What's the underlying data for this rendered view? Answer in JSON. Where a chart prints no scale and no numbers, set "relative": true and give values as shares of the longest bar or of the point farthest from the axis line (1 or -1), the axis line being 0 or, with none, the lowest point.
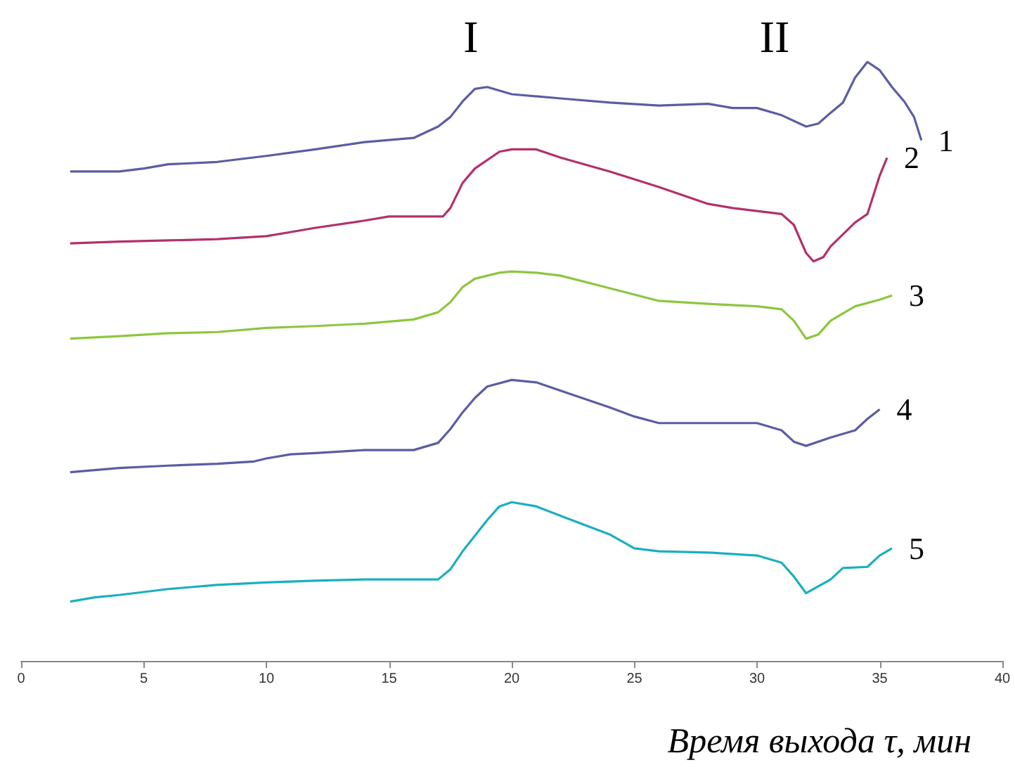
{
  "chart_data": {
    "type": "line",
    "relative": true,
    "xlabel": "Время выхода τ, мин",
    "xlim": [
      0,
      40
    ],
    "xticks": [
      0,
      5,
      10,
      15,
      20,
      25,
      30,
      35,
      40
    ],
    "tick_labels": "x",
    "grid": false,
    "legend": false,
    "marker": "none",
    "line_style": "solid",
    "annotations": [
      "I",
      "II"
    ],
    "series": [
      {
        "name": "1",
        "color": "#5c5ca3",
        "x": [
          2,
          4,
          5,
          6,
          8,
          10,
          12,
          14,
          16,
          17,
          17.5,
          18,
          18.5,
          19,
          20,
          22,
          24,
          26,
          28,
          29,
          30,
          31,
          32,
          32.5,
          33,
          33.5,
          34,
          34.5,
          35,
          35.5,
          36,
          36.4,
          36.7
        ],
        "values": [
          0.817,
          0.817,
          0.822,
          0.829,
          0.833,
          0.843,
          0.854,
          0.866,
          0.873,
          0.892,
          0.908,
          0.934,
          0.955,
          0.958,
          0.946,
          0.939,
          0.932,
          0.927,
          0.93,
          0.923,
          0.923,
          0.911,
          0.892,
          0.897,
          0.915,
          0.932,
          0.974,
          1,
          0.986,
          0.958,
          0.934,
          0.908,
          0.869
        ]
      },
      {
        "name": "2",
        "color": "#b3306b",
        "x": [
          2,
          4,
          6,
          8,
          10,
          11,
          12,
          14,
          15,
          16,
          17.2,
          17.5,
          18,
          18.5,
          19.5,
          20,
          21,
          22,
          24,
          26,
          28,
          29,
          30,
          31,
          31.5,
          32,
          32.3,
          32.7,
          33,
          34,
          34.5,
          35,
          35.3
        ],
        "values": [
          0.697,
          0.7,
          0.702,
          0.704,
          0.709,
          0.716,
          0.723,
          0.735,
          0.742,
          0.742,
          0.742,
          0.756,
          0.798,
          0.822,
          0.85,
          0.854,
          0.854,
          0.84,
          0.817,
          0.791,
          0.763,
          0.756,
          0.751,
          0.746,
          0.728,
          0.681,
          0.667,
          0.674,
          0.692,
          0.732,
          0.746,
          0.81,
          0.84
        ]
      },
      {
        "name": "3",
        "color": "#8dc63f",
        "x": [
          2,
          4,
          6,
          8,
          10,
          12,
          14,
          16,
          17,
          17.5,
          18,
          18.5,
          19.5,
          20,
          21,
          22,
          24,
          26,
          28,
          30,
          31,
          31.5,
          32,
          32.5,
          33,
          34,
          35,
          35.5
        ],
        "values": [
          0.538,
          0.542,
          0.547,
          0.549,
          0.556,
          0.559,
          0.563,
          0.57,
          0.582,
          0.599,
          0.624,
          0.638,
          0.648,
          0.65,
          0.648,
          0.643,
          0.622,
          0.601,
          0.596,
          0.592,
          0.587,
          0.568,
          0.538,
          0.545,
          0.568,
          0.592,
          0.603,
          0.61
        ]
      },
      {
        "name": "4",
        "color": "#5c5ca3",
        "x": [
          2,
          4,
          6,
          8,
          9.5,
          10,
          11,
          12,
          14,
          16,
          17,
          17.5,
          18,
          18.5,
          19,
          20,
          21,
          22,
          24,
          25,
          26,
          28,
          30,
          31,
          31.5,
          32,
          33,
          34,
          34.5,
          35
        ],
        "values": [
          0.315,
          0.322,
          0.326,
          0.329,
          0.333,
          0.338,
          0.345,
          0.347,
          0.352,
          0.352,
          0.364,
          0.387,
          0.415,
          0.439,
          0.458,
          0.469,
          0.465,
          0.451,
          0.423,
          0.408,
          0.397,
          0.397,
          0.397,
          0.385,
          0.366,
          0.359,
          0.373,
          0.385,
          0.404,
          0.42
        ]
      },
      {
        "name": "5",
        "color": "#1aafc0",
        "x": [
          2,
          3,
          4,
          6,
          8,
          10,
          12,
          14,
          16,
          17,
          17.5,
          18,
          19,
          19.5,
          20,
          21,
          22,
          24,
          25,
          26,
          28,
          30,
          31,
          31.5,
          32,
          33,
          33.5,
          34.5,
          35,
          35.5
        ],
        "values": [
          0.099,
          0.106,
          0.11,
          0.12,
          0.127,
          0.131,
          0.134,
          0.136,
          0.136,
          0.136,
          0.153,
          0.183,
          0.235,
          0.258,
          0.265,
          0.258,
          0.242,
          0.211,
          0.188,
          0.183,
          0.181,
          0.176,
          0.164,
          0.141,
          0.113,
          0.136,
          0.155,
          0.157,
          0.176,
          0.188
        ]
      }
    ]
  }
}
